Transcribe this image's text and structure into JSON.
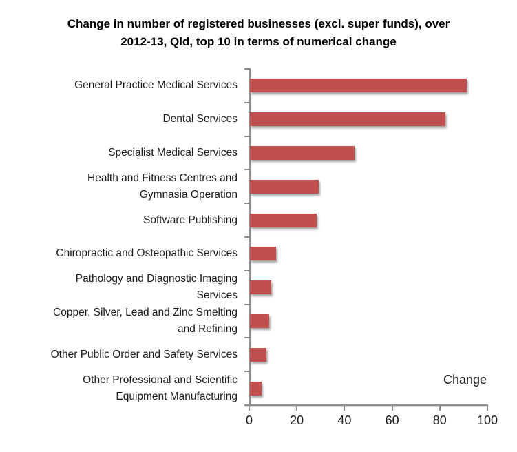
{
  "chart_data": {
    "type": "bar",
    "orientation": "horizontal",
    "title": "Change in number of registered businesses (excl. super funds), over 2012-13, Qld, top 10 in terms of numerical change",
    "title_lines": [
      "Change in number of registered businesses (excl. super funds), over",
      "2012-13, Qld, top 10 in terms of numerical change"
    ],
    "categories": [
      "General Practice Medical Services",
      "Dental Services",
      "Specialist Medical Services",
      "Health and Fitness Centres and Gymnasia Operation",
      "Software Publishing",
      "Chiropractic and Osteopathic Services",
      "Pathology and Diagnostic Imaging Services",
      "Copper, Silver, Lead and Zinc Smelting and Refining",
      "Other Public Order and Safety Services",
      "Other Professional and Scientific Equipment Manufacturing"
    ],
    "category_label_lines": [
      [
        "General Practice Medical Services"
      ],
      [
        "Dental Services"
      ],
      [
        "Specialist Medical Services"
      ],
      [
        "Health and Fitness Centres and",
        "Gymnasia Operation"
      ],
      [
        "Software Publishing"
      ],
      [
        "Chiropractic and Osteopathic Services"
      ],
      [
        "Pathology and Diagnostic Imaging",
        "Services"
      ],
      [
        "Copper, Silver, Lead and Zinc Smelting",
        "and Refining"
      ],
      [
        "Other Public Order and Safety Services"
      ],
      [
        "Other Professional and Scientific",
        "Equipment Manufacturing"
      ]
    ],
    "values": [
      91,
      82,
      44,
      29,
      28,
      11,
      9,
      8,
      7,
      5
    ],
    "series_name": "Change",
    "xlabel": "",
    "ylabel": "",
    "xlim": [
      0,
      100
    ],
    "x_ticks": [
      0,
      20,
      40,
      60,
      80,
      100
    ],
    "grid": false,
    "legend_position": "bottom-right",
    "bar_color": "#C0504D",
    "axis_color": "#8E8E8E"
  }
}
